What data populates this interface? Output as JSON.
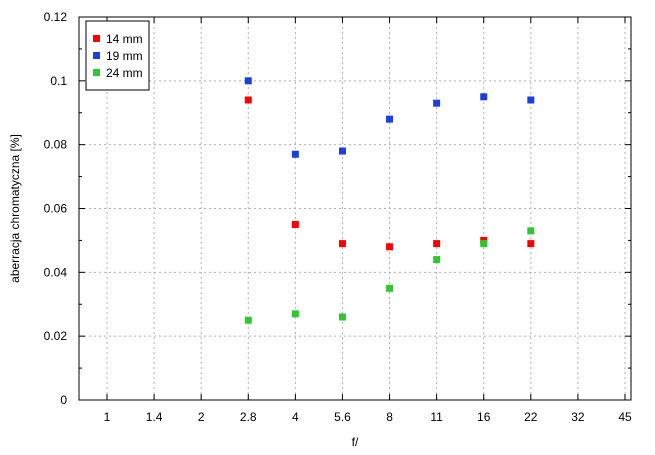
{
  "chart_data": {
    "type": "scatter",
    "xlabel": "f/",
    "ylabel": "aberracja chromatyczna [%]",
    "x_categories": [
      "1",
      "1.4",
      "2",
      "2.8",
      "4",
      "5.6",
      "8",
      "11",
      "16",
      "22",
      "32",
      "45"
    ],
    "x_scale": "log2 (f-stops)",
    "ylim": [
      0,
      0.12
    ],
    "yticks": [
      "0",
      "0.02",
      "0.04",
      "0.06",
      "0.08",
      "0.1",
      "0.12"
    ],
    "grid": true,
    "legend_position": "top-left",
    "series": [
      {
        "name": "14 mm",
        "color": "#ff0000",
        "points": [
          {
            "x": "2.8",
            "y": 0.094
          },
          {
            "x": "4",
            "y": 0.055
          },
          {
            "x": "5.6",
            "y": 0.049
          },
          {
            "x": "8",
            "y": 0.048
          },
          {
            "x": "11",
            "y": 0.049
          },
          {
            "x": "16",
            "y": 0.05
          },
          {
            "x": "22",
            "y": 0.049
          }
        ]
      },
      {
        "name": "19 mm",
        "color": "#1c3fe0",
        "points": [
          {
            "x": "2.8",
            "y": 0.1
          },
          {
            "x": "4",
            "y": 0.077
          },
          {
            "x": "5.6",
            "y": 0.078
          },
          {
            "x": "8",
            "y": 0.088
          },
          {
            "x": "11",
            "y": 0.093
          },
          {
            "x": "16",
            "y": 0.095
          },
          {
            "x": "22",
            "y": 0.094
          }
        ]
      },
      {
        "name": "24 mm",
        "color": "#2ec82e",
        "points": [
          {
            "x": "2.8",
            "y": 0.025
          },
          {
            "x": "4",
            "y": 0.027
          },
          {
            "x": "5.6",
            "y": 0.026
          },
          {
            "x": "8",
            "y": 0.035
          },
          {
            "x": "11",
            "y": 0.044
          },
          {
            "x": "16",
            "y": 0.049
          },
          {
            "x": "22",
            "y": 0.053
          }
        ]
      }
    ]
  }
}
